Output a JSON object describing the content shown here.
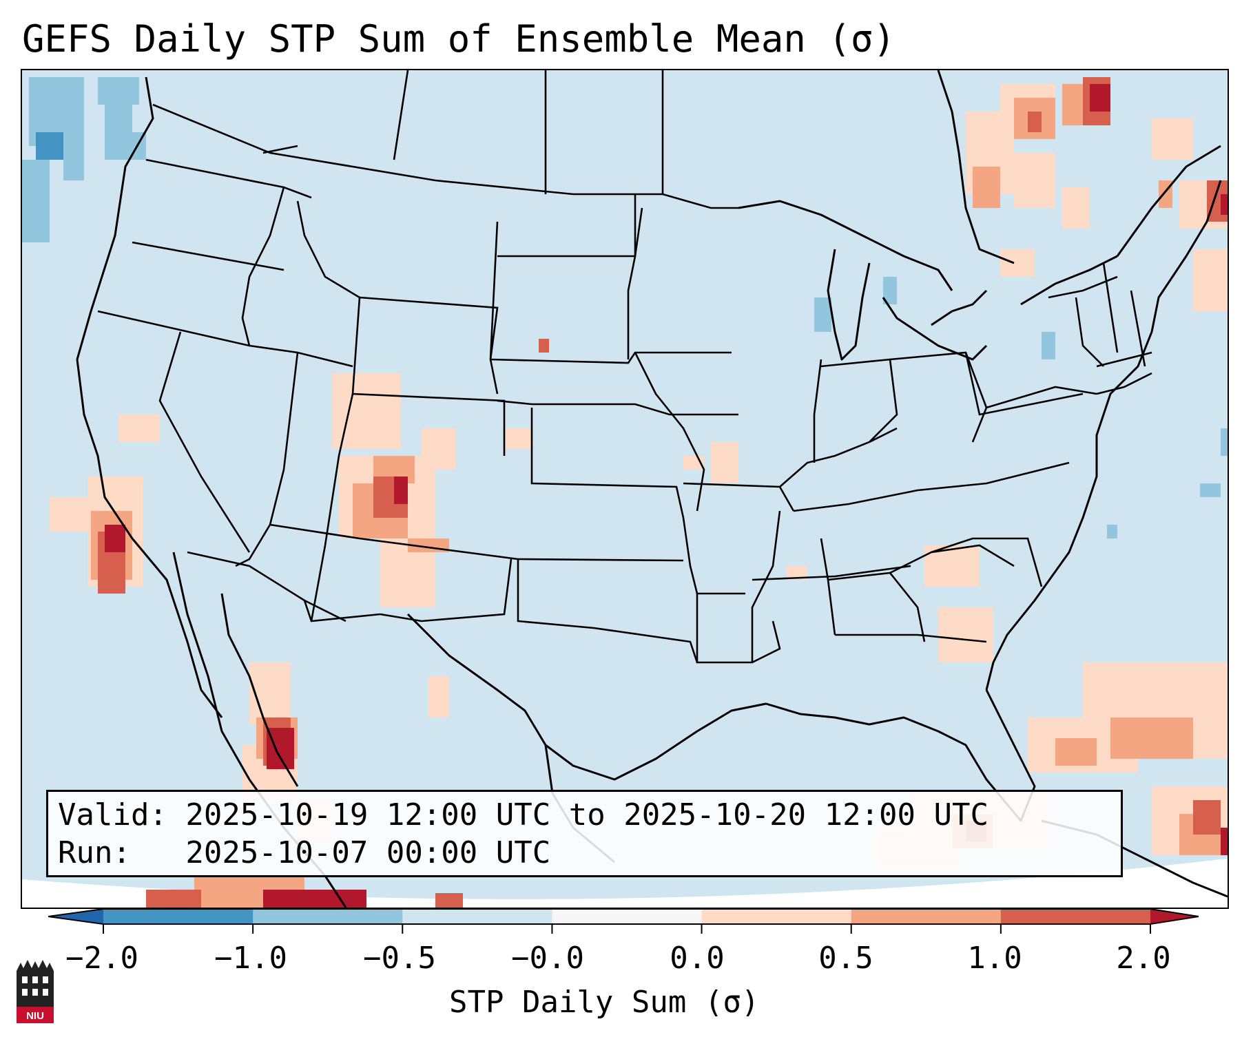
{
  "title": "GEFS Daily STP Sum of Ensemble Mean (σ)",
  "info": {
    "valid_line": "Valid: 2025-10-19 12:00 UTC to 2025-10-20 12:00 UTC",
    "run_line": "Run:   2025-10-07 00:00 UTC"
  },
  "colorbar": {
    "label": "STP Daily Sum (σ)",
    "tick_labels": [
      "−2.0",
      "−1.0",
      "−0.5",
      "−0.0",
      "0.0",
      "0.5",
      "1.0",
      "2.0"
    ],
    "bins": [
      "#2166ac",
      "#4393c3",
      "#92c5de",
      "#d1e5f0",
      "#f7f7f7",
      "#fddbc7",
      "#f4a582",
      "#d6604d",
      "#b2182b"
    ]
  },
  "map": {
    "background_color": "#d1e5f0",
    "logo_text": "NIU"
  }
}
